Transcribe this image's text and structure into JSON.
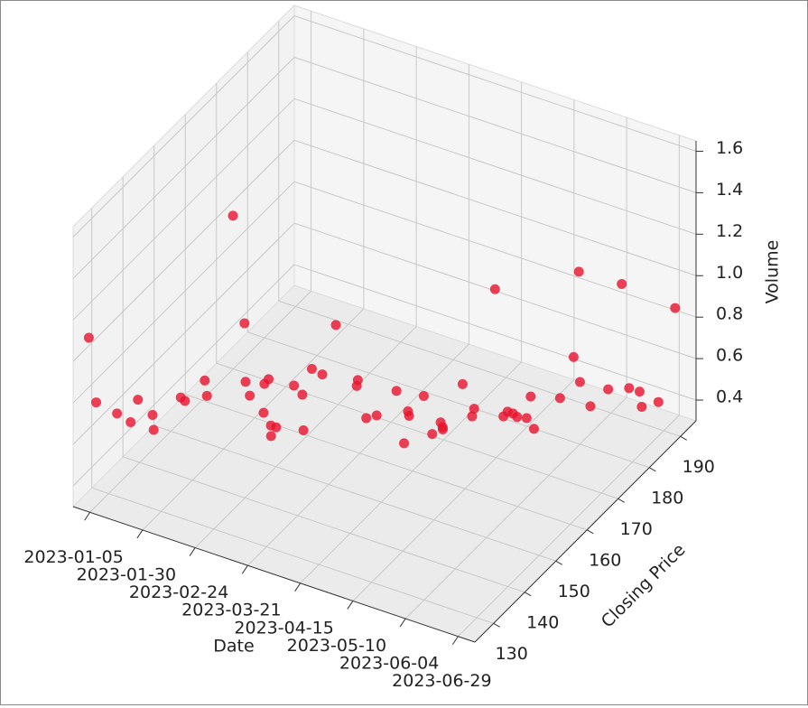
{
  "chart_data": {
    "type": "scatter3d",
    "xlabel": "Date",
    "ylabel": "Closing Price",
    "zlabel": "Volume",
    "color": "#e8112d",
    "x": [
      "2023-01-03",
      "2023-01-05",
      "2023-01-09",
      "2023-01-11",
      "2023-01-13",
      "2023-01-17",
      "2023-01-19",
      "2023-01-23",
      "2023-01-25",
      "2023-01-27",
      "2023-01-31",
      "2023-02-02",
      "2023-02-06",
      "2023-02-08",
      "2023-02-10",
      "2023-02-14",
      "2023-02-16",
      "2023-02-21",
      "2023-02-23",
      "2023-02-27",
      "2023-03-01",
      "2023-03-03",
      "2023-03-07",
      "2023-03-09",
      "2023-03-13",
      "2023-03-15",
      "2023-03-17",
      "2023-03-21",
      "2023-03-23",
      "2023-03-27",
      "2023-03-29",
      "2023-03-31",
      "2023-04-04",
      "2023-04-06",
      "2023-04-11",
      "2023-04-13",
      "2023-04-17",
      "2023-04-19",
      "2023-04-21",
      "2023-04-25",
      "2023-04-27",
      "2023-05-01",
      "2023-05-03",
      "2023-05-05",
      "2023-05-09",
      "2023-05-11",
      "2023-05-15",
      "2023-05-17",
      "2023-05-19",
      "2023-05-23",
      "2023-05-25",
      "2023-05-30",
      "2023-06-01",
      "2023-06-05",
      "2023-06-07",
      "2023-06-09",
      "2023-06-13",
      "2023-06-15",
      "2023-06-20",
      "2023-06-22",
      "2023-06-26",
      "2023-06-28",
      "2023-06-30"
    ],
    "y": [
      125,
      126,
      130,
      133,
      134,
      136,
      135,
      141,
      141,
      146,
      144,
      151,
      152,
      151,
      151,
      153,
      153,
      148,
      149,
      148,
      145,
      151,
      151,
      150,
      150,
      152,
      155,
      159,
      158,
      158,
      160,
      165,
      166,
      165,
      160,
      165,
      165,
      167,
      165,
      163,
      168,
      169,
      167,
      173,
      173,
      173,
      172,
      172,
      175,
      171,
      172,
      177,
      180,
      179,
      178,
      180,
      183,
      186,
      185,
      187,
      185,
      189,
      193
    ],
    "z": [
      1.12,
      0.8,
      0.7,
      0.62,
      0.72,
      0.63,
      0.58,
      0.66,
      0.65,
      0.68,
      0.65,
      1.42,
      0.9,
      0.64,
      0.58,
      0.62,
      0.65,
      0.58,
      0.51,
      0.53,
      0.54,
      0.7,
      0.67,
      0.52,
      0.83,
      0.78,
      0.98,
      0.64,
      0.69,
      0.52,
      0.51,
      0.56,
      0.46,
      0.46,
      0.42,
      0.58,
      0.41,
      0.42,
      0.48,
      0.49,
      0.64,
      0.52,
      0.52,
      1.05,
      0.45,
      0.48,
      0.5,
      0.49,
      0.55,
      0.52,
      0.46,
      0.55,
      0.71,
      1.15,
      0.64,
      0.5,
      0.55,
      1.02,
      0.55,
      0.51,
      0.48,
      0.45,
      0.85
    ],
    "xlim": [
      "2022-12-28",
      "2023-07-07"
    ],
    "xticks": [
      "2023-01-05",
      "2023-01-30",
      "2023-02-24",
      "2023-03-21",
      "2023-04-15",
      "2023-05-10",
      "2023-06-04",
      "2023-06-29"
    ],
    "ylim": [
      124,
      195
    ],
    "yticks": [
      130,
      140,
      150,
      160,
      170,
      180,
      190
    ],
    "zlim": [
      0.3,
      1.65
    ],
    "zticks": [
      0.4,
      0.6,
      0.8,
      {
        "value": 1,
        "label": "1.0"
      },
      1.2,
      1.4,
      1.6
    ],
    "grid": true
  }
}
